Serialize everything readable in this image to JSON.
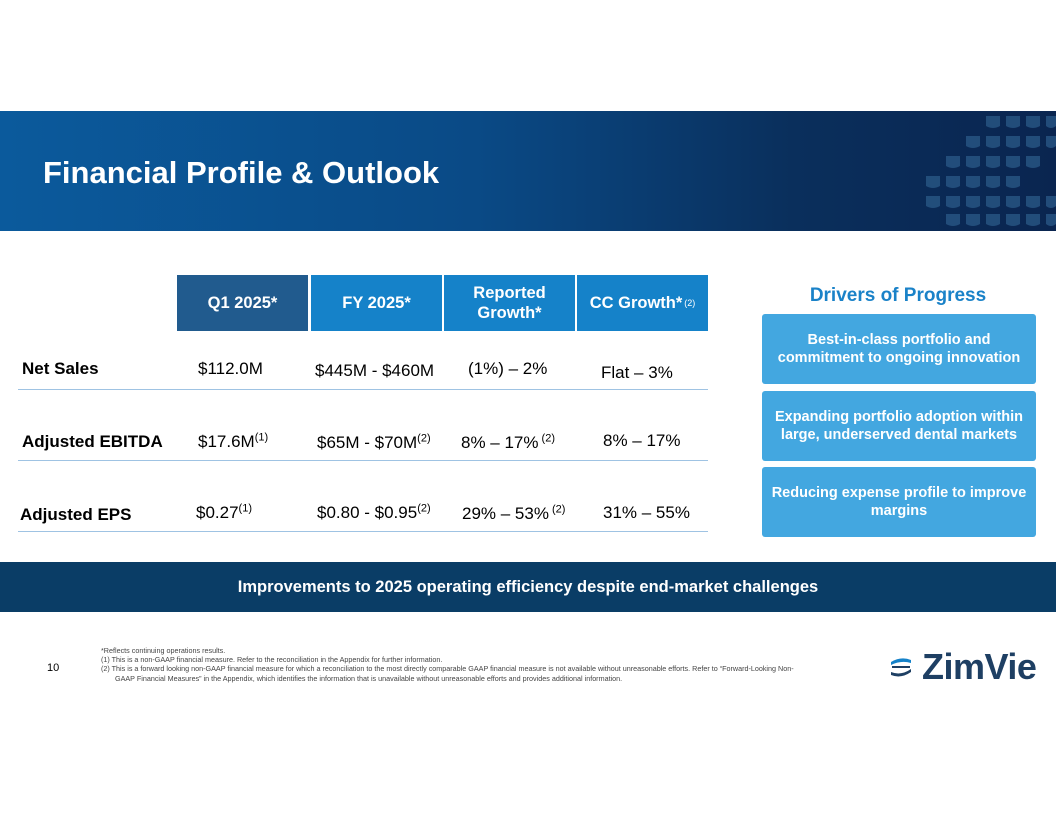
{
  "title": "Financial Profile & Outlook",
  "table": {
    "headers": [
      {
        "label": "Q1 2025*",
        "sup": ""
      },
      {
        "label": "FY 2025*",
        "sup": ""
      },
      {
        "label": "Reported Growth*",
        "sup": ""
      },
      {
        "label": "CC Growth*",
        "sup": "(2)"
      }
    ],
    "rows": [
      {
        "label": "Net Sales",
        "cells": [
          {
            "text": "$112.0M",
            "sup": ""
          },
          {
            "text": "$445M - $460M",
            "sup": ""
          },
          {
            "text": "(1%) – 2%",
            "sup": ""
          },
          {
            "text": "Flat – 3%",
            "sup": ""
          }
        ]
      },
      {
        "label": "Adjusted EBITDA",
        "cells": [
          {
            "text": "$17.6M",
            "sup": "(1)"
          },
          {
            "text": "$65M - $70M",
            "sup": "(2)"
          },
          {
            "text": "8% – 17%",
            "sup": " (2)"
          },
          {
            "text": "8% – 17%",
            "sup": ""
          }
        ]
      },
      {
        "label": "Adjusted EPS",
        "cells": [
          {
            "text": "$0.27",
            "sup": "(1)"
          },
          {
            "text": "$0.80 - $0.95",
            "sup": "(2)"
          },
          {
            "text": "29% – 53%",
            "sup": " (2)"
          },
          {
            "text": "31% – 55%",
            "sup": ""
          }
        ]
      }
    ]
  },
  "drivers": {
    "title": "Drivers of Progress",
    "items": [
      "Best-in-class portfolio and commitment to ongoing innovation",
      "Expanding portfolio adoption within large, underserved dental markets",
      "Reducing expense profile to improve margins"
    ]
  },
  "banner_bottom": "Improvements to 2025 operating efficiency despite end-market challenges",
  "page_number": "10",
  "footnotes": [
    "*Reflects continuing operations results.",
    "(1) This is a non-GAAP financial measure. Refer to the reconciliation in the Appendix for further information.",
    "(2) This is a forward looking non-GAAP financial measure for which a reconciliation to the most directly comparable GAAP financial measure is not available without unreasonable efforts. Refer to “Forward-Looking Non-",
    "GAAP Financial Measures” in the Appendix, which identifies the information that is unavailable without unreasonable efforts and provides additional information."
  ],
  "logo": {
    "text": "ZimVie",
    "icon": "zimvie-mark-icon"
  },
  "colors": {
    "navy": "#0a3d66",
    "header_dark": "#215b8e",
    "header_light": "#1582c9",
    "driver_box": "#43a7e0",
    "accent_text": "#1a82c8"
  }
}
